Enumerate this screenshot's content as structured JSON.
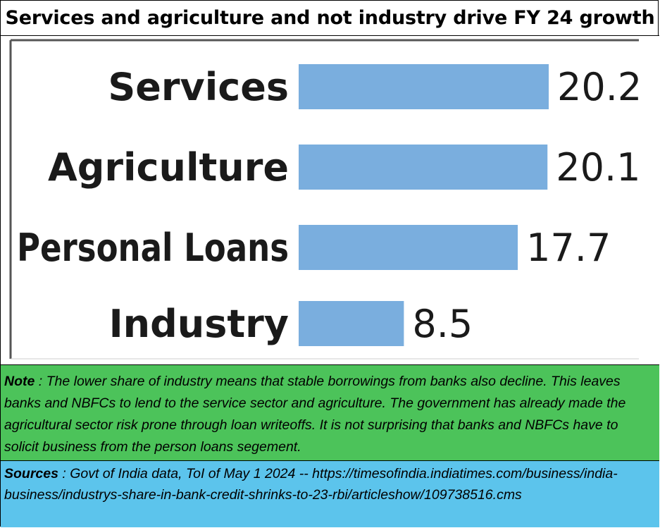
{
  "title": "Services and agriculture and not industry drive FY 24 growth",
  "chart_data": {
    "type": "bar",
    "orientation": "horizontal",
    "categories": [
      "Services",
      "Agriculture",
      "Personal Loans",
      "Industry"
    ],
    "values": [
      20.2,
      20.1,
      17.7,
      8.5
    ],
    "value_labels": [
      "20.2",
      "20.1",
      "17.7",
      "8.5"
    ],
    "bar_color": "#7aaede",
    "xlim": [
      0,
      20.2
    ]
  },
  "note": {
    "label": "Note",
    "text": " :  The lower share of industry means that stable borrowings from banks also decline.  This leaves banks and NBFCs to lend to the service sector and agriculture.  The government has already made the agricultural sector risk prone through loan writeoffs.  It is not surprising that banks and NBFCs have to solicit business from the person loans segement."
  },
  "sources": {
    "label": "Sources",
    "text": " : Govt of India data, ToI of May 1 2024 -- https://timesofindia.indiatimes.com/business/india-business/industrys-share-in-bank-credit-shrinks-to-23-rbi/articleshow/109738516.cms"
  },
  "colors": {
    "note_bg": "#4cc35a",
    "sources_bg": "#5cc4ec"
  }
}
